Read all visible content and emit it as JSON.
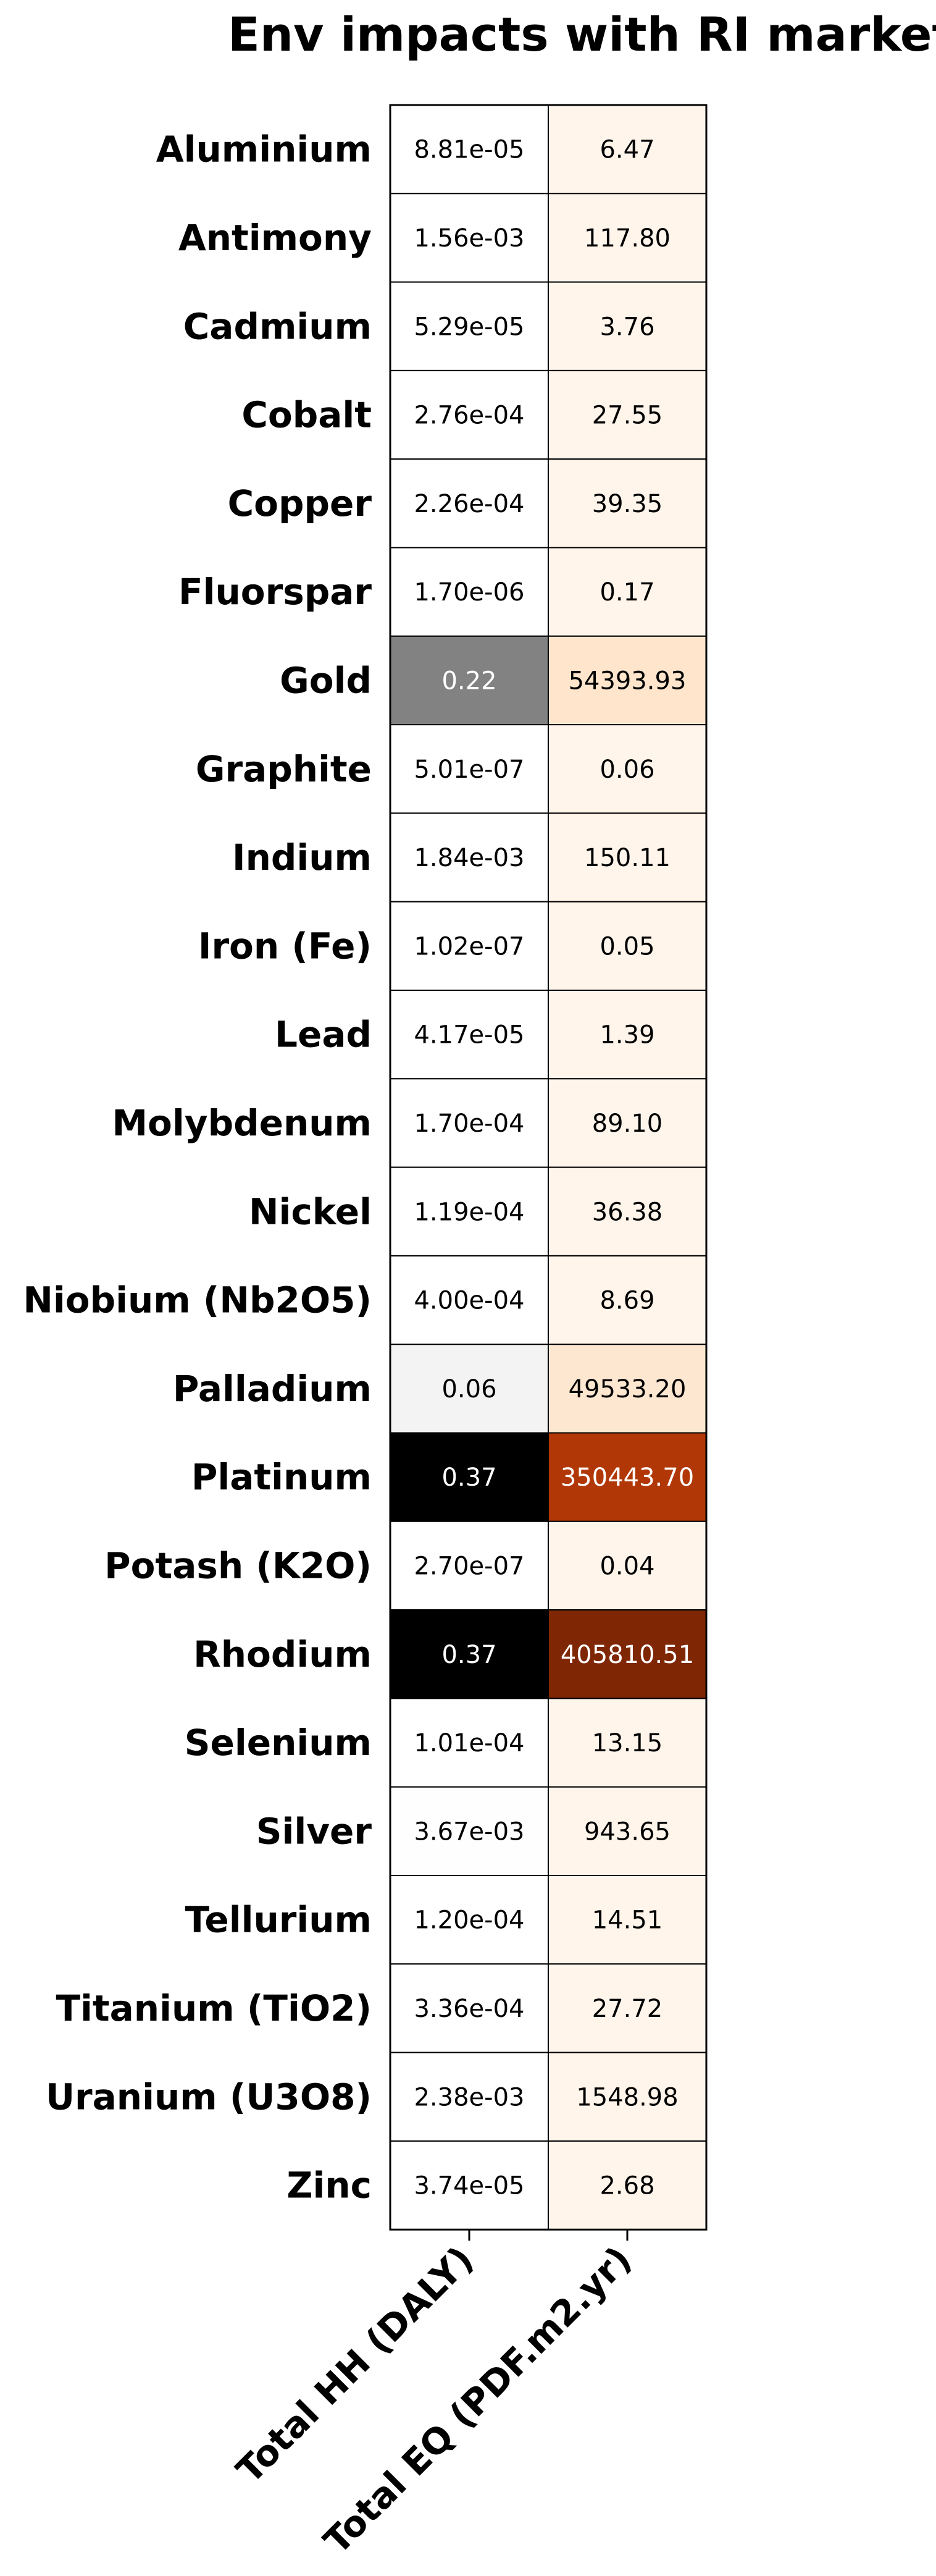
{
  "chart_data": {
    "type": "heatmap",
    "title": "Env impacts with RI markets",
    "rows": [
      "Aluminium",
      "Antimony",
      "Cadmium",
      "Cobalt",
      "Copper",
      "Fluorspar",
      "Gold",
      "Graphite",
      "Indium",
      "Iron (Fe)",
      "Lead",
      "Molybdenum",
      "Nickel",
      "Niobium (Nb2O5)",
      "Palladium",
      "Platinum",
      "Potash (K2O)",
      "Rhodium",
      "Selenium",
      "Silver",
      "Tellurium",
      "Titanium (TiO2)",
      "Uranium (U3O8)",
      "Zinc"
    ],
    "columns": [
      "Total HH (DALY)",
      "Total EQ (PDF.m2.yr)"
    ],
    "values": [
      [
        8.81e-05,
        6.47
      ],
      [
        0.00156,
        117.8
      ],
      [
        5.29e-05,
        3.76
      ],
      [
        0.000276,
        27.55
      ],
      [
        0.000226,
        39.35
      ],
      [
        1.7e-06,
        0.17
      ],
      [
        0.22,
        54393.93
      ],
      [
        5.01e-07,
        0.06
      ],
      [
        0.00184,
        150.11
      ],
      [
        1.02e-07,
        0.05
      ],
      [
        4.17e-05,
        1.39
      ],
      [
        0.00017,
        89.1
      ],
      [
        0.000119,
        36.38
      ],
      [
        0.0004,
        8.69
      ],
      [
        0.06,
        49533.2
      ],
      [
        0.37,
        350443.7
      ],
      [
        2.7e-07,
        0.04
      ],
      [
        0.37,
        405810.51
      ],
      [
        0.000101,
        13.15
      ],
      [
        0.00367,
        943.65
      ],
      [
        0.00012,
        14.51
      ],
      [
        0.000336,
        27.72
      ],
      [
        0.00238,
        1548.98
      ],
      [
        3.74e-05,
        2.68
      ]
    ],
    "labels": [
      [
        "8.81e-05",
        "6.47"
      ],
      [
        "1.56e-03",
        "117.80"
      ],
      [
        "5.29e-05",
        "3.76"
      ],
      [
        "2.76e-04",
        "27.55"
      ],
      [
        "2.26e-04",
        "39.35"
      ],
      [
        "1.70e-06",
        "0.17"
      ],
      [
        "0.22",
        "54393.93"
      ],
      [
        "5.01e-07",
        "0.06"
      ],
      [
        "1.84e-03",
        "150.11"
      ],
      [
        "1.02e-07",
        "0.05"
      ],
      [
        "4.17e-05",
        "1.39"
      ],
      [
        "1.70e-04",
        "89.10"
      ],
      [
        "1.19e-04",
        "36.38"
      ],
      [
        "4.00e-04",
        "8.69"
      ],
      [
        "0.06",
        "49533.20"
      ],
      [
        "0.37",
        "350443.70"
      ],
      [
        "2.70e-07",
        "0.04"
      ],
      [
        "0.37",
        "405810.51"
      ],
      [
        "1.01e-04",
        "13.15"
      ],
      [
        "3.67e-03",
        "943.65"
      ],
      [
        "1.20e-04",
        "14.51"
      ],
      [
        "3.36e-04",
        "27.72"
      ],
      [
        "2.38e-03",
        "1548.98"
      ],
      [
        "3.74e-05",
        "2.68"
      ]
    ],
    "colormaps": [
      "Greys",
      "Oranges"
    ],
    "grid": true,
    "legend": "none"
  }
}
